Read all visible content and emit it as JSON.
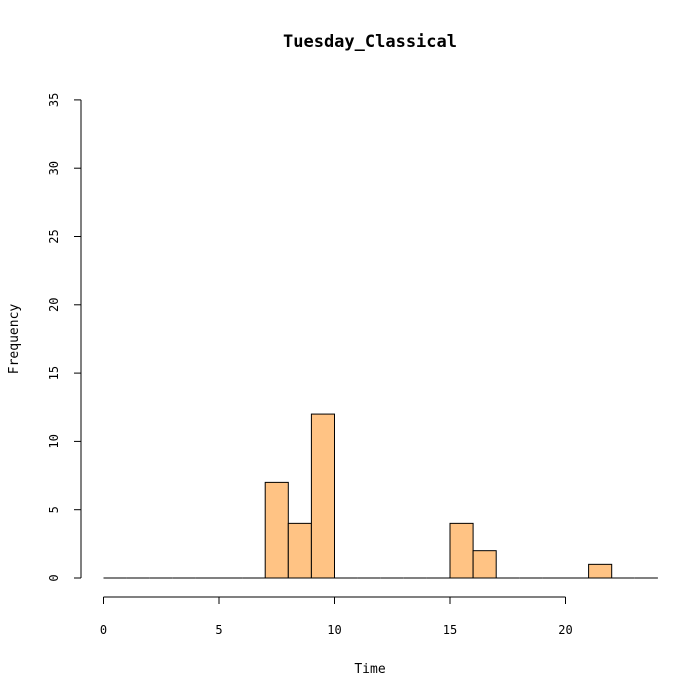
{
  "chart_data": {
    "type": "bar",
    "title": "Tuesday_Classical",
    "xlabel": "Time",
    "ylabel": "Frequency",
    "xlim": [
      0,
      24
    ],
    "ylim": [
      0,
      35
    ],
    "x_ticks": [
      "0",
      "5",
      "10",
      "15",
      "20"
    ],
    "x_tick_values": [
      0,
      5,
      10,
      15,
      20
    ],
    "y_ticks": [
      "0",
      "5",
      "10",
      "15",
      "20",
      "25",
      "30",
      "35"
    ],
    "y_tick_values": [
      0,
      5,
      10,
      15,
      20,
      25,
      30,
      35
    ],
    "bins": [
      {
        "start": 0,
        "end": 1,
        "count": 0
      },
      {
        "start": 1,
        "end": 2,
        "count": 0
      },
      {
        "start": 2,
        "end": 3,
        "count": 0
      },
      {
        "start": 3,
        "end": 4,
        "count": 0
      },
      {
        "start": 4,
        "end": 5,
        "count": 0
      },
      {
        "start": 5,
        "end": 6,
        "count": 0
      },
      {
        "start": 6,
        "end": 7,
        "count": 0
      },
      {
        "start": 7,
        "end": 8,
        "count": 7
      },
      {
        "start": 8,
        "end": 9,
        "count": 4
      },
      {
        "start": 9,
        "end": 10,
        "count": 12
      },
      {
        "start": 10,
        "end": 11,
        "count": 0
      },
      {
        "start": 11,
        "end": 12,
        "count": 0
      },
      {
        "start": 12,
        "end": 13,
        "count": 0
      },
      {
        "start": 13,
        "end": 14,
        "count": 0
      },
      {
        "start": 14,
        "end": 15,
        "count": 0
      },
      {
        "start": 15,
        "end": 16,
        "count": 4
      },
      {
        "start": 16,
        "end": 17,
        "count": 2
      },
      {
        "start": 17,
        "end": 18,
        "count": 0
      },
      {
        "start": 18,
        "end": 19,
        "count": 0
      },
      {
        "start": 19,
        "end": 20,
        "count": 0
      },
      {
        "start": 20,
        "end": 21,
        "count": 0
      },
      {
        "start": 21,
        "end": 22,
        "count": 1
      },
      {
        "start": 22,
        "end": 23,
        "count": 0
      },
      {
        "start": 23,
        "end": 24,
        "count": 0
      }
    ],
    "bar_color": "#FFC384",
    "grid": false,
    "legend": "none"
  }
}
